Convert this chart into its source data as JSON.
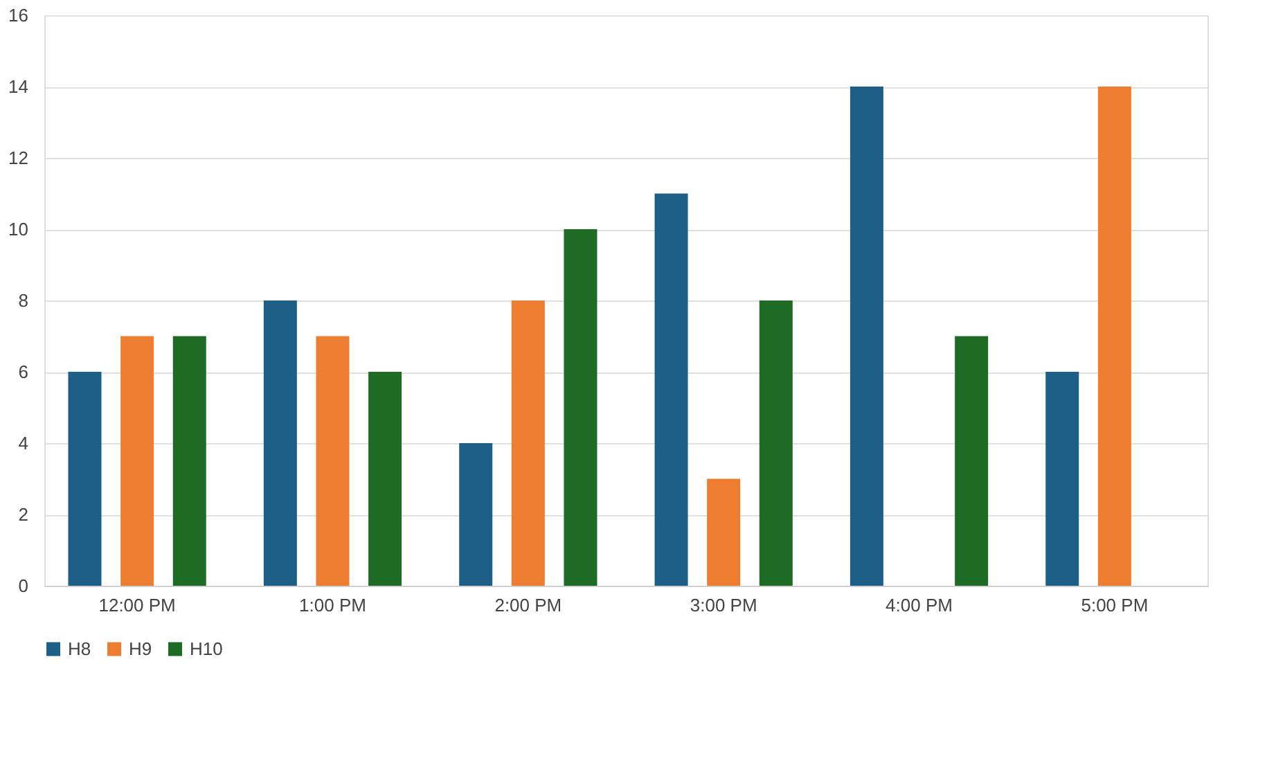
{
  "chart_data": {
    "type": "bar",
    "categories": [
      "12:00 PM",
      "1:00 PM",
      "2:00 PM",
      "3:00 PM",
      "4:00 PM",
      "5:00 PM"
    ],
    "series": [
      {
        "name": "H8",
        "color": "#1d5f87",
        "values": [
          6,
          8,
          4,
          11,
          14,
          6
        ]
      },
      {
        "name": "H9",
        "color": "#ed7d31",
        "values": [
          7,
          7,
          8,
          3,
          null,
          14
        ]
      },
      {
        "name": "H10",
        "color": "#1e6b26",
        "values": [
          7,
          6,
          10,
          8,
          7,
          null
        ]
      }
    ],
    "ylim": [
      0,
      16
    ],
    "yticks": [
      0,
      2,
      4,
      6,
      8,
      10,
      12,
      14,
      16
    ],
    "grid": "y",
    "legend": "bottom"
  }
}
